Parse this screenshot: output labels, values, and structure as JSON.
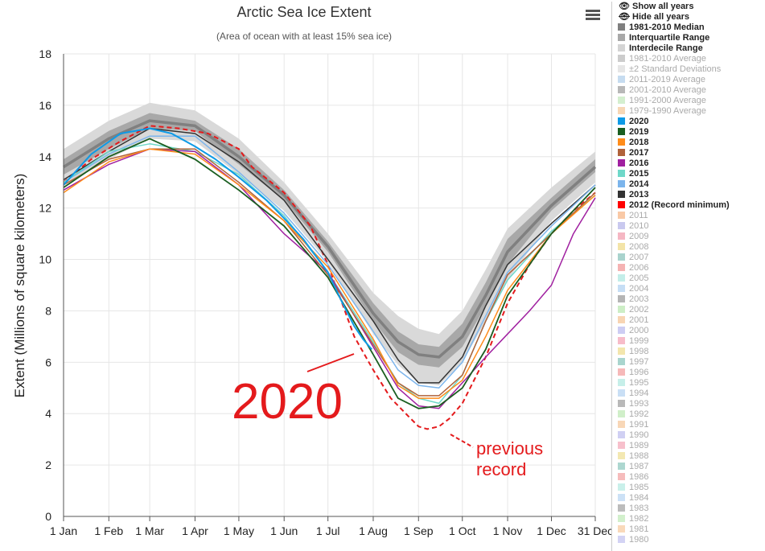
{
  "chart_data": {
    "type": "line",
    "title": "Arctic Sea Ice Extent",
    "subtitle": "(Area of ocean with at least 15% sea ice)",
    "ylabel": "Extent (Millions of square kilometers)",
    "ylim": [
      0,
      18
    ],
    "yticks": [
      "0",
      "2",
      "4",
      "6",
      "8",
      "10",
      "12",
      "14",
      "16",
      "18"
    ],
    "xticks": [
      "1 Jan",
      "1 Feb",
      "1 Mar",
      "1 Apr",
      "1 May",
      "1 Jun",
      "1 Jul",
      "1 Aug",
      "1 Sep",
      "1 Oct",
      "1 Nov",
      "1 Dec",
      "31 Dec"
    ],
    "xtick_doy": [
      1,
      32,
      60,
      91,
      121,
      152,
      182,
      213,
      244,
      274,
      305,
      335,
      365
    ],
    "grid": true,
    "legend_position": "right",
    "annotations": [
      {
        "text": "2020",
        "color": "#e41a1c"
      },
      {
        "text": "previous",
        "color": "#e41a1c"
      },
      {
        "text": "record",
        "color": "#e41a1c"
      }
    ],
    "bands": [
      {
        "name": "Interdecile Range",
        "color": "#d9d9d9",
        "doy": [
          1,
          32,
          60,
          91,
          121,
          152,
          182,
          213,
          230,
          244,
          258,
          274,
          290,
          305,
          335,
          365
        ],
        "low": [
          12.9,
          13.9,
          14.7,
          14.6,
          13.3,
          11.9,
          9.9,
          7.1,
          5.9,
          5.2,
          5.1,
          6.0,
          7.6,
          9.2,
          11.5,
          13.0
        ],
        "high": [
          14.3,
          15.4,
          16.1,
          15.8,
          14.7,
          13.0,
          11.0,
          8.7,
          7.8,
          7.3,
          7.1,
          8.0,
          9.6,
          11.2,
          12.8,
          14.2
        ]
      },
      {
        "name": "Interquartile Range",
        "color": "#a8a8a8",
        "doy": [
          1,
          32,
          60,
          91,
          121,
          152,
          182,
          213,
          230,
          244,
          258,
          274,
          290,
          305,
          335,
          365
        ],
        "low": [
          13.3,
          14.3,
          15.1,
          15.0,
          13.7,
          12.3,
          10.3,
          7.6,
          6.4,
          5.9,
          5.8,
          6.6,
          8.2,
          9.8,
          11.9,
          13.4
        ],
        "high": [
          13.9,
          15.0,
          15.7,
          15.4,
          14.3,
          12.7,
          10.7,
          8.3,
          7.2,
          6.7,
          6.6,
          7.5,
          9.1,
          10.8,
          12.4,
          13.9
        ]
      }
    ],
    "series": [
      {
        "name": "1981-2010 Median",
        "color": "#808080",
        "width": 3.5,
        "dash": false,
        "doy": [
          1,
          32,
          60,
          91,
          121,
          152,
          182,
          213,
          230,
          244,
          258,
          274,
          290,
          305,
          335,
          365
        ],
        "values": [
          13.6,
          14.7,
          15.4,
          15.2,
          14.0,
          12.5,
          10.5,
          7.9,
          6.8,
          6.3,
          6.2,
          7.0,
          8.6,
          10.3,
          12.1,
          13.6
        ]
      },
      {
        "name": "2012 (Record minimum)",
        "color": "#e41a1c",
        "width": 2,
        "dash": true,
        "doy": [
          1,
          20,
          40,
          60,
          80,
          100,
          121,
          130,
          152,
          170,
          182,
          200,
          213,
          225,
          237,
          244,
          250,
          258,
          265,
          274,
          290,
          305,
          320,
          335,
          350,
          365
        ],
        "values": [
          13.0,
          13.9,
          14.6,
          15.2,
          15.1,
          14.9,
          14.3,
          13.6,
          12.6,
          11.3,
          9.8,
          7.0,
          5.7,
          4.6,
          3.9,
          3.5,
          3.4,
          3.5,
          3.8,
          4.4,
          6.2,
          8.3,
          9.8,
          11.0,
          11.9,
          12.6
        ]
      },
      {
        "name": "2013",
        "color": "#333333",
        "width": 1.5,
        "dash": false,
        "doy": [
          1,
          32,
          60,
          91,
          121,
          152,
          182,
          213,
          230,
          244,
          258,
          274,
          290,
          305,
          335,
          365
        ],
        "values": [
          13.1,
          14.2,
          15.1,
          14.9,
          13.8,
          12.3,
          10.0,
          7.6,
          6.1,
          5.2,
          5.2,
          6.2,
          8.2,
          9.8,
          11.4,
          12.9
        ]
      },
      {
        "name": "2014",
        "color": "#7cb5ec",
        "width": 1.5,
        "dash": false,
        "doy": [
          1,
          32,
          60,
          91,
          121,
          152,
          182,
          213,
          230,
          244,
          258,
          274,
          290,
          305,
          335,
          365
        ],
        "values": [
          13.0,
          14.1,
          14.8,
          14.8,
          13.4,
          11.8,
          9.8,
          7.2,
          5.7,
          5.1,
          5.0,
          6.0,
          7.8,
          9.5,
          11.3,
          12.9
        ]
      },
      {
        "name": "2015",
        "color": "#6fd8c9",
        "width": 1.5,
        "dash": false,
        "doy": [
          1,
          32,
          60,
          91,
          121,
          152,
          182,
          213,
          230,
          244,
          258,
          274,
          290,
          305,
          335,
          365
        ],
        "values": [
          13.0,
          14.2,
          14.5,
          14.2,
          13.3,
          11.7,
          9.5,
          6.8,
          5.2,
          4.6,
          4.4,
          5.5,
          7.6,
          9.2,
          11.1,
          12.5
        ]
      },
      {
        "name": "2016",
        "color": "#a020a0",
        "width": 1.5,
        "dash": false,
        "doy": [
          1,
          32,
          60,
          91,
          121,
          152,
          182,
          213,
          230,
          244,
          258,
          274,
          290,
          305,
          320,
          335,
          350,
          365
        ],
        "values": [
          12.7,
          13.7,
          14.3,
          14.2,
          12.9,
          11.0,
          9.5,
          6.6,
          5.0,
          4.3,
          4.2,
          5.2,
          6.2,
          7.1,
          8.0,
          9.0,
          11.0,
          12.4
        ]
      },
      {
        "name": "2017",
        "color": "#b0623a",
        "width": 1.5,
        "dash": false,
        "doy": [
          1,
          32,
          60,
          91,
          121,
          152,
          182,
          213,
          230,
          244,
          258,
          274,
          290,
          305,
          335,
          365
        ],
        "values": [
          12.9,
          13.9,
          14.3,
          14.3,
          13.0,
          11.5,
          9.4,
          6.7,
          5.2,
          4.7,
          4.7,
          5.5,
          7.6,
          9.4,
          11.0,
          12.6
        ]
      },
      {
        "name": "2018",
        "color": "#ff8c1a",
        "width": 1.5,
        "dash": false,
        "doy": [
          1,
          32,
          60,
          91,
          121,
          152,
          182,
          213,
          230,
          244,
          258,
          274,
          290,
          305,
          335,
          365
        ],
        "values": [
          12.6,
          13.8,
          14.3,
          14.1,
          12.9,
          11.5,
          9.7,
          6.9,
          5.1,
          4.6,
          4.6,
          5.3,
          7.0,
          8.8,
          11.0,
          12.5
        ]
      },
      {
        "name": "2019",
        "color": "#1a5e20",
        "width": 1.8,
        "dash": false,
        "doy": [
          1,
          32,
          60,
          91,
          121,
          152,
          182,
          213,
          230,
          244,
          258,
          274,
          290,
          305,
          335,
          365
        ],
        "values": [
          12.8,
          14.0,
          14.7,
          13.9,
          12.7,
          11.3,
          9.3,
          6.3,
          4.6,
          4.2,
          4.3,
          5.0,
          6.5,
          8.6,
          11.0,
          12.8
        ]
      },
      {
        "name": "2020",
        "color": "#0e9ae6",
        "width": 2,
        "dash": false,
        "doy": [
          1,
          20,
          40,
          60,
          75,
          91,
          105,
          121,
          140,
          152,
          165,
          182,
          192,
          200,
          206,
          212
        ],
        "values": [
          12.9,
          14.1,
          14.9,
          15.1,
          14.9,
          14.4,
          13.9,
          13.2,
          12.3,
          11.6,
          10.8,
          9.5,
          8.3,
          7.4,
          6.9,
          6.5
        ]
      }
    ]
  },
  "menu_icon": "hamburger-menu-icon",
  "legend": {
    "show_all": "Show all years",
    "hide_all": "Hide all years",
    "show_icon": "eye-icon",
    "hide_icon": "eye-slash-icon",
    "items": [
      {
        "label": "1981-2010 Median",
        "color": "#7f7f7f",
        "on": true
      },
      {
        "label": "Interquartile Range",
        "color": "#a8a8a8",
        "on": true
      },
      {
        "label": "Interdecile Range",
        "color": "#d4d4d4",
        "on": true
      },
      {
        "label": "1981-2010 Average",
        "color": "#cccccc",
        "on": false
      },
      {
        "label": "±2 Standard Deviations",
        "color": "#e6e6e6",
        "on": false
      },
      {
        "label": "2011-2019 Average",
        "color": "#c6dcf0",
        "on": false
      },
      {
        "label": "2001-2010 Average",
        "color": "#b8b8b8",
        "on": false
      },
      {
        "label": "1991-2000 Average",
        "color": "#d4efcf",
        "on": false
      },
      {
        "label": "1979-1990 Average",
        "color": "#f7d7b5",
        "on": false
      },
      {
        "label": "2020",
        "color": "#0e9ae6",
        "on": true
      },
      {
        "label": "2019",
        "color": "#1a5e20",
        "on": true
      },
      {
        "label": "2018",
        "color": "#ff8c1a",
        "on": true
      },
      {
        "label": "2017",
        "color": "#b0623a",
        "on": true
      },
      {
        "label": "2016",
        "color": "#a020a0",
        "on": true
      },
      {
        "label": "2015",
        "color": "#6fd8c9",
        "on": true
      },
      {
        "label": "2014",
        "color": "#7cb5ec",
        "on": true
      },
      {
        "label": "2013",
        "color": "#333333",
        "on": true
      },
      {
        "label": "2012 (Record minimum)",
        "color": "#ff0000",
        "on": true
      },
      {
        "label": "2011",
        "color": "#f9c9a6",
        "on": false
      },
      {
        "label": "2010",
        "color": "#c9c9ef",
        "on": false
      },
      {
        "label": "2009",
        "color": "#f5b7c3",
        "on": false
      },
      {
        "label": "2008",
        "color": "#f3e4a8",
        "on": false
      },
      {
        "label": "2007",
        "color": "#a9d3cd",
        "on": false
      },
      {
        "label": "2006",
        "color": "#f5b3b3",
        "on": false
      },
      {
        "label": "2005",
        "color": "#c3eee9",
        "on": false
      },
      {
        "label": "2004",
        "color": "#c6def5",
        "on": false
      },
      {
        "label": "2003",
        "color": "#b5b5b5",
        "on": false
      },
      {
        "label": "2002",
        "color": "#cdeec6",
        "on": false
      },
      {
        "label": "2001",
        "color": "#f8d5b3",
        "on": false
      },
      {
        "label": "2000",
        "color": "#cdcdf3",
        "on": false
      },
      {
        "label": "1999",
        "color": "#f7bcc9",
        "on": false
      },
      {
        "label": "1998",
        "color": "#f3e6ad",
        "on": false
      },
      {
        "label": "1997",
        "color": "#a9d5ce",
        "on": false
      },
      {
        "label": "1996",
        "color": "#f6b9b9",
        "on": false
      },
      {
        "label": "1995",
        "color": "#c6efe9",
        "on": false
      },
      {
        "label": "1994",
        "color": "#c9dff5",
        "on": false
      },
      {
        "label": "1993",
        "color": "#b9b9b9",
        "on": false
      },
      {
        "label": "1992",
        "color": "#d0efc9",
        "on": false
      },
      {
        "label": "1991",
        "color": "#f8d7b7",
        "on": false
      },
      {
        "label": "1990",
        "color": "#d0d0f3",
        "on": false
      },
      {
        "label": "1989",
        "color": "#f7c0cc",
        "on": false
      },
      {
        "label": "1988",
        "color": "#f3e8b2",
        "on": false
      },
      {
        "label": "1987",
        "color": "#add7d0",
        "on": false
      },
      {
        "label": "1986",
        "color": "#f6bcbc",
        "on": false
      },
      {
        "label": "1985",
        "color": "#c9f0ea",
        "on": false
      },
      {
        "label": "1984",
        "color": "#cce1f6",
        "on": false
      },
      {
        "label": "1983",
        "color": "#bcbcbc",
        "on": false
      },
      {
        "label": "1982",
        "color": "#d2f0cc",
        "on": false
      },
      {
        "label": "1981",
        "color": "#f9d9ba",
        "on": false
      },
      {
        "label": "1980",
        "color": "#d3d3f4",
        "on": false
      }
    ]
  }
}
